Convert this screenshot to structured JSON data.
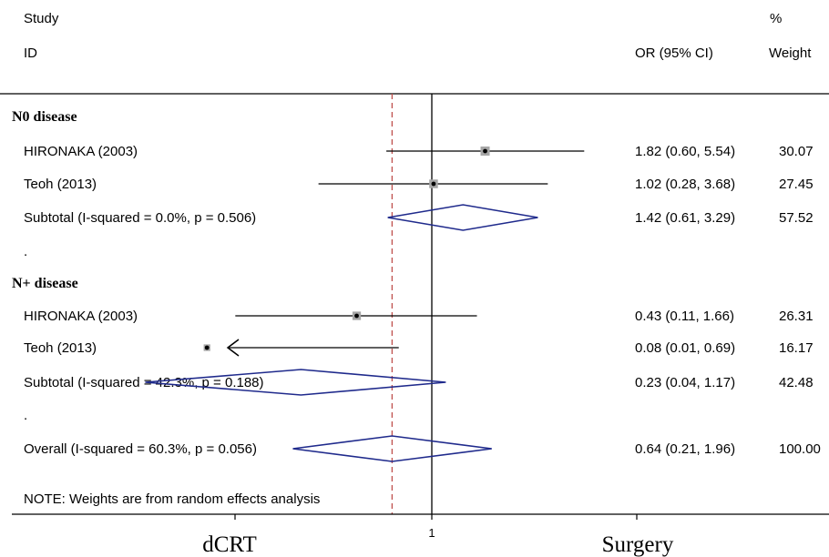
{
  "chart_data": {
    "type": "forest",
    "scale": "log",
    "xlim": [
      0.005,
      50
    ],
    "reference_line": 1,
    "overall_line": 0.64,
    "headers": {
      "study_top": "Study",
      "study_id": "ID",
      "weight_top": "%",
      "or_label": "OR (95% CI)",
      "weight_label": "Weight"
    },
    "rows": [
      {
        "kind": "group",
        "label": "N0 disease"
      },
      {
        "kind": "study",
        "label": "HIRONAKA (2003)",
        "or": 1.82,
        "lo": 0.6,
        "hi": 5.54,
        "ci_text": "1.82 (0.60, 5.54)",
        "weight": "30.07"
      },
      {
        "kind": "study",
        "label": "Teoh (2013)",
        "or": 1.02,
        "lo": 0.28,
        "hi": 3.68,
        "ci_text": "1.02 (0.28, 3.68)",
        "weight": "27.45"
      },
      {
        "kind": "subtotal",
        "label": "Subtotal  (I-squared = 0.0%, p = 0.506)",
        "or": 1.42,
        "lo": 0.61,
        "hi": 3.29,
        "ci_text": "1.42 (0.61, 3.29)",
        "weight": "57.52"
      },
      {
        "kind": "dot",
        "label": "."
      },
      {
        "kind": "group",
        "label": "N+ disease"
      },
      {
        "kind": "study",
        "label": "HIRONAKA (2003)",
        "or": 0.43,
        "lo": 0.11,
        "hi": 1.66,
        "ci_text": "0.43 (0.11, 1.66)",
        "weight": "26.31"
      },
      {
        "kind": "study",
        "label": "Teoh (2013)",
        "or": 0.08,
        "lo": 0.01,
        "hi": 0.69,
        "ci_text": "0.08 (0.01, 0.69)",
        "weight": "16.17",
        "lo_truncated": true
      },
      {
        "kind": "subtotal",
        "label": "Subtotal  (I-squared = 42.3%, p = 0.188)",
        "or": 0.23,
        "lo": 0.04,
        "hi": 1.17,
        "ci_text": "0.23 (0.04, 1.17)",
        "weight": "42.48"
      },
      {
        "kind": "dot",
        "label": "."
      },
      {
        "kind": "overall",
        "label": "Overall  (I-squared = 60.3%, p = 0.056)",
        "or": 0.64,
        "lo": 0.21,
        "hi": 1.96,
        "ci_text": "0.64 (0.21, 1.96)",
        "weight": "100.00"
      }
    ],
    "note": "NOTE: Weights are from random effects analysis",
    "x_tick_label": "1",
    "left_label": "dCRT",
    "right_label": "Surgery"
  }
}
